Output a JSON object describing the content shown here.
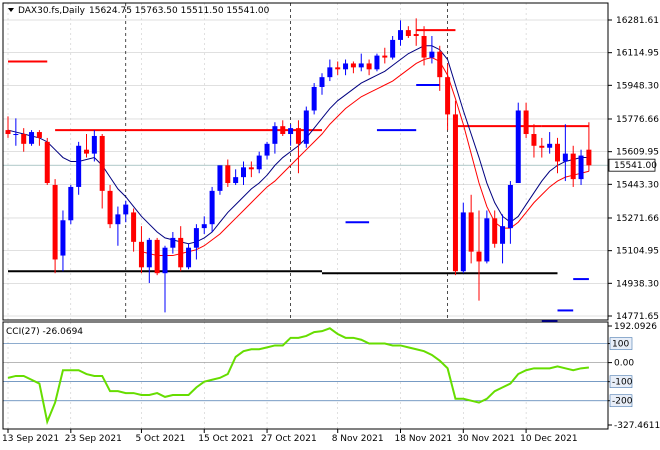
{
  "header": {
    "symbol_line": "DAX30.fs,Daily",
    "ohlc": "15624.75 15763.50 15511.50 15541.00"
  },
  "indicator": {
    "label": "CCI(27) -26.0694",
    "value": -26.0694,
    "scale_top": "192.0926",
    "scale_bottom": "-327.4611"
  },
  "colors": {
    "bull": "#0000ff",
    "bear": "#ff0000",
    "fast_ma": "#000080",
    "slow_ma": "#ff0000",
    "resistance": "#ff0000",
    "support": "#0000ff",
    "support_level": "#000000",
    "cci_line": "#66dd00",
    "grid": "#c0c0c0",
    "price_line": "#7fa7a7"
  },
  "chart_data": [
    {
      "type": "candlestick",
      "title": "DAX30.fs,Daily",
      "ylim": [
        14771.65,
        16281.61
      ],
      "y_ticks": [
        "16281.61",
        "16114.95",
        "15948.30",
        "15776.66",
        "15609.95",
        "15443.30",
        "15271.66",
        "15104.95",
        "14938.30",
        "14771.65"
      ],
      "x_labels": [
        "13 Sep 2021",
        "23 Sep 2021",
        "5 Oct 2021",
        "15 Oct 2021",
        "27 Oct 2021",
        "8 Nov 2021",
        "18 Nov 2021",
        "30 Nov 2021",
        "10 Dec 2021"
      ],
      "current_price": "15541.00",
      "candles": [
        [
          15720,
          15790,
          15680,
          15700
        ],
        [
          15700,
          15780,
          15640,
          15700
        ],
        [
          15700,
          15730,
          15610,
          15650
        ],
        [
          15650,
          15720,
          15640,
          15710
        ],
        [
          15710,
          15720,
          15640,
          15680
        ],
        [
          15660,
          15680,
          15440,
          15450
        ],
        [
          15440,
          15470,
          14990,
          15060
        ],
        [
          15080,
          15310,
          15000,
          15260
        ],
        [
          15260,
          15440,
          15240,
          15430
        ],
        [
          15430,
          15660,
          15390,
          15640
        ],
        [
          15620,
          15700,
          15580,
          15600
        ],
        [
          15600,
          15720,
          15560,
          15690
        ],
        [
          15690,
          15700,
          15320,
          15410
        ],
        [
          15410,
          15440,
          15220,
          15240
        ],
        [
          15240,
          15330,
          15130,
          15290
        ],
        [
          15290,
          15360,
          15250,
          15340
        ],
        [
          15300,
          15320,
          15100,
          15150
        ],
        [
          15150,
          15230,
          14990,
          15020
        ],
        [
          15020,
          15170,
          14940,
          15160
        ],
        [
          15160,
          15170,
          14980,
          14990
        ],
        [
          14990,
          15130,
          14790,
          15120
        ],
        [
          15120,
          15200,
          15090,
          15170
        ],
        [
          15170,
          15230,
          15000,
          15020
        ],
        [
          15020,
          15140,
          15010,
          15120
        ],
        [
          15120,
          15240,
          15060,
          15220
        ],
        [
          15220,
          15280,
          15190,
          15240
        ],
        [
          15240,
          15430,
          15200,
          15410
        ],
        [
          15410,
          15540,
          15390,
          15540
        ],
        [
          15540,
          15570,
          15430,
          15450
        ],
        [
          15450,
          15520,
          15440,
          15480
        ],
        [
          15480,
          15560,
          15440,
          15530
        ],
        [
          15530,
          15560,
          15480,
          15520
        ],
        [
          15520,
          15610,
          15500,
          15590
        ],
        [
          15590,
          15660,
          15570,
          15650
        ],
        [
          15650,
          15760,
          15600,
          15740
        ],
        [
          15740,
          15770,
          15690,
          15700
        ],
        [
          15700,
          15750,
          15640,
          15730
        ],
        [
          15730,
          15770,
          15500,
          15650
        ],
        [
          15650,
          15840,
          15630,
          15820
        ],
        [
          15820,
          15960,
          15800,
          15940
        ],
        [
          15940,
          16010,
          15900,
          15990
        ],
        [
          15990,
          16080,
          15970,
          16040
        ],
        [
          16040,
          16070,
          16000,
          16030
        ],
        [
          16030,
          16080,
          16000,
          16060
        ],
        [
          16060,
          16070,
          16010,
          16040
        ],
        [
          16040,
          16110,
          16020,
          16060
        ],
        [
          16060,
          16080,
          16000,
          16030
        ],
        [
          16030,
          16110,
          16020,
          16100
        ],
        [
          16100,
          16140,
          16060,
          16090
        ],
        [
          16090,
          16200,
          16080,
          16180
        ],
        [
          16180,
          16280,
          16150,
          16230
        ],
        [
          16230,
          16250,
          16190,
          16200
        ],
        [
          16210,
          16290,
          16150,
          16200
        ],
        [
          16200,
          16250,
          16050,
          16090
        ],
        [
          16090,
          16200,
          16060,
          16120
        ],
        [
          16120,
          16150,
          15920,
          15990
        ],
        [
          15990,
          16060,
          15720,
          15800
        ],
        [
          15800,
          15870,
          14980,
          15000
        ],
        [
          15000,
          15350,
          14990,
          15300
        ],
        [
          15300,
          15390,
          15040,
          15100
        ],
        [
          15100,
          15310,
          14850,
          15050
        ],
        [
          15050,
          15310,
          15040,
          15270
        ],
        [
          15270,
          15310,
          15120,
          15140
        ],
        [
          15140,
          15290,
          15040,
          15230
        ],
        [
          15220,
          15460,
          15140,
          15440
        ],
        [
          15450,
          15860,
          15450,
          15820
        ],
        [
          15820,
          15860,
          15680,
          15700
        ],
        [
          15700,
          15750,
          15580,
          15640
        ],
        [
          15640,
          15680,
          15580,
          15630
        ],
        [
          15630,
          15710,
          15600,
          15650
        ],
        [
          15650,
          15680,
          15500,
          15560
        ],
        [
          15560,
          15750,
          15460,
          15600
        ],
        [
          15600,
          15640,
          15430,
          15470
        ],
        [
          15470,
          15620,
          15440,
          15590
        ],
        [
          15620,
          15760,
          15510,
          15540
        ]
      ],
      "fast_ma": [
        15720,
        15710,
        15700,
        15690,
        15680,
        15660,
        15620,
        15580,
        15560,
        15560,
        15570,
        15580,
        15540,
        15480,
        15420,
        15380,
        15330,
        15280,
        15240,
        15200,
        15170,
        15160,
        15150,
        15140,
        15150,
        15170,
        15200,
        15250,
        15300,
        15340,
        15380,
        15420,
        15450,
        15490,
        15540,
        15580,
        15610,
        15640,
        15680,
        15730,
        15780,
        15830,
        15870,
        15900,
        15930,
        15960,
        15980,
        16000,
        16020,
        16050,
        16080,
        16110,
        16130,
        16150,
        16150,
        16130,
        16080,
        15950,
        15820,
        15700,
        15580,
        15450,
        15350,
        15280,
        15250,
        15280,
        15340,
        15400,
        15460,
        15510,
        15540,
        15560,
        15570,
        15580,
        15580
      ],
      "slow_ma": [
        null,
        null,
        null,
        null,
        null,
        null,
        null,
        null,
        null,
        null,
        null,
        null,
        null,
        null,
        null,
        null,
        null,
        15100,
        15090,
        15080,
        15080,
        15080,
        15090,
        15100,
        15110,
        15130,
        15160,
        15190,
        15230,
        15270,
        15310,
        15350,
        15390,
        15430,
        15460,
        15500,
        15540,
        15580,
        15620,
        15660,
        15700,
        15750,
        15790,
        15830,
        15860,
        15890,
        15910,
        15930,
        15950,
        15970,
        16000,
        16030,
        16060,
        16080,
        16090,
        16070,
        16000,
        15880,
        15750,
        15600,
        15450,
        15330,
        15250,
        15220,
        15220,
        15250,
        15300,
        15350,
        15390,
        15430,
        15460,
        15480,
        15490,
        15500,
        15510
      ],
      "resistance": [
        {
          "from": 0,
          "to": 5,
          "value": 16070
        },
        {
          "from": 6,
          "to": 40,
          "value": 15720
        },
        {
          "from": 52,
          "to": 57,
          "value": 16230
        },
        {
          "from": 57,
          "to": 68,
          "value": 15740
        },
        {
          "from": 68,
          "to": 74,
          "value": 15740
        }
      ],
      "support_dots": [
        {
          "from": 43,
          "to": 46,
          "value": 15250
        },
        {
          "from": 47,
          "to": 52,
          "value": 15720
        },
        {
          "from": 52,
          "to": 55,
          "value": 15950
        }
      ],
      "support_extra": [
        {
          "from": 68,
          "to": 70,
          "value": 14745
        },
        {
          "from": 70,
          "to": 72,
          "value": 14800
        },
        {
          "from": 72,
          "to": 74,
          "value": 14960
        }
      ],
      "black_level": {
        "from": 0,
        "to": 40,
        "value": 15000
      },
      "black_level2": {
        "from": 40,
        "to": 70,
        "value": 14990
      }
    },
    {
      "type": "line",
      "title": "CCI(27) -26.0694",
      "ylim": [
        -327.4611,
        192.0926
      ],
      "y_ticks": [
        "192.0926",
        "100",
        "0.00",
        "-100",
        "-200",
        "-327.4611"
      ],
      "levels": [
        100,
        0,
        -100,
        -200
      ],
      "values": [
        -80,
        -70,
        -70,
        -90,
        -110,
        -310,
        -210,
        -40,
        -40,
        -40,
        -60,
        -70,
        -70,
        -150,
        -150,
        -160,
        -160,
        -170,
        -170,
        -160,
        -180,
        -170,
        -170,
        -170,
        -130,
        -100,
        -90,
        -80,
        -60,
        30,
        60,
        70,
        70,
        80,
        90,
        90,
        130,
        130,
        140,
        160,
        165,
        180,
        150,
        130,
        130,
        120,
        100,
        100,
        100,
        90,
        90,
        80,
        70,
        60,
        40,
        10,
        -30,
        -190,
        -190,
        -200,
        -210,
        -190,
        -150,
        -130,
        -110,
        -60,
        -40,
        -30,
        -30,
        -30,
        -20,
        -30,
        -40,
        -30,
        -26
      ]
    }
  ]
}
